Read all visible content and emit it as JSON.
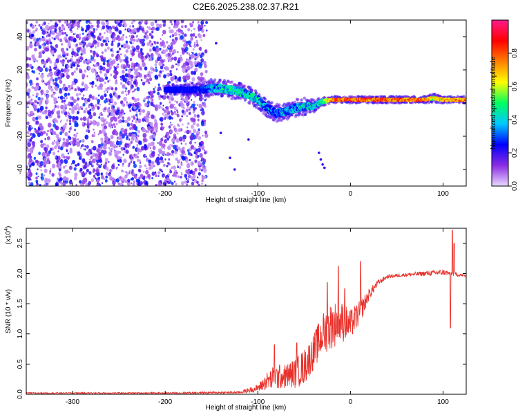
{
  "title": "C2E6.2025.238.02.37.R21",
  "colorbar": {
    "label": "Normalized spectral amplitude",
    "ticks": [
      "0.0",
      "0.2",
      "0.4",
      "0.6",
      "0.8"
    ],
    "tick_values": [
      0.0,
      0.2,
      0.4,
      0.6,
      0.8
    ],
    "range": [
      0,
      1
    ],
    "colors": [
      "#e9d9ff",
      "#8a2be2",
      "#0000ff",
      "#00c8ff",
      "#00ff60",
      "#ffff00",
      "#ff8000",
      "#ff0000",
      "#ff1a8c"
    ]
  },
  "chart_data": [
    {
      "type": "heatmap",
      "xlabel": "Height of straight line (km)",
      "ylabel": "Frequency (Hz)",
      "xlim": [
        -350,
        125
      ],
      "ylim": [
        -50,
        50
      ],
      "xticks": [
        -300,
        -200,
        -100,
        0,
        100
      ],
      "xtick_labels": [
        "-300",
        "-200",
        "-100",
        "0",
        "100"
      ],
      "yticks": [
        -40,
        -20,
        0,
        20,
        40
      ],
      "ytick_labels": [
        "-40",
        "-20",
        "0",
        "20",
        "40"
      ],
      "noise_region": {
        "x": [
          -350,
          -155
        ],
        "y": [
          -50,
          50
        ],
        "amplitude": [
          0.05,
          0.3
        ]
      },
      "frequency_trace": [
        {
          "x": -200,
          "f": 8,
          "amp": 0.25,
          "width": 2
        },
        {
          "x": -160,
          "f": 8,
          "amp": 0.3,
          "width": 3
        },
        {
          "x": -150,
          "f": 9,
          "amp": 0.45,
          "width": 4
        },
        {
          "x": -140,
          "f": 9,
          "amp": 0.5,
          "width": 4
        },
        {
          "x": -130,
          "f": 8,
          "amp": 0.55,
          "width": 4
        },
        {
          "x": -120,
          "f": 7,
          "amp": 0.55,
          "width": 4
        },
        {
          "x": -110,
          "f": 5,
          "amp": 0.5,
          "width": 4
        },
        {
          "x": -100,
          "f": 2,
          "amp": 0.5,
          "width": 4
        },
        {
          "x": -90,
          "f": -3,
          "amp": 0.45,
          "width": 4
        },
        {
          "x": -80,
          "f": -6,
          "amp": 0.4,
          "width": 4
        },
        {
          "x": -70,
          "f": -5,
          "amp": 0.45,
          "width": 4
        },
        {
          "x": -60,
          "f": -3,
          "amp": 0.45,
          "width": 4
        },
        {
          "x": -50,
          "f": -2,
          "amp": 0.5,
          "width": 4
        },
        {
          "x": -40,
          "f": -2,
          "amp": 0.5,
          "width": 3
        },
        {
          "x": -30,
          "f": 1,
          "amp": 0.55,
          "width": 2
        },
        {
          "x": -20,
          "f": 2,
          "amp": 0.85,
          "width": 1.5
        },
        {
          "x": 0,
          "f": 2,
          "amp": 0.9,
          "width": 1.5
        },
        {
          "x": 40,
          "f": 2,
          "amp": 0.9,
          "width": 1.5
        },
        {
          "x": 80,
          "f": 2,
          "amp": 0.88,
          "width": 1.5
        },
        {
          "x": 90,
          "f": 3,
          "amp": 0.7,
          "width": 2
        },
        {
          "x": 100,
          "f": 2,
          "amp": 0.85,
          "width": 1.5
        },
        {
          "x": 125,
          "f": 2,
          "amp": 0.85,
          "width": 1.5
        }
      ],
      "stray_points": [
        {
          "x": -28,
          "f": -39
        },
        {
          "x": -30,
          "f": -37
        },
        {
          "x": -32,
          "f": -34
        },
        {
          "x": -34,
          "f": -30
        },
        {
          "x": -130,
          "f": -33
        },
        {
          "x": -125,
          "f": -40
        },
        {
          "x": -110,
          "f": -22
        },
        {
          "x": -165,
          "f": 5
        },
        {
          "x": -140,
          "f": -18
        },
        {
          "x": -145,
          "f": 36
        },
        {
          "x": -120,
          "f": 12
        }
      ]
    },
    {
      "type": "line",
      "xlabel": "Height of straight line (km)",
      "ylabel": "SNR (10 * v/v)",
      "y_multiplier": "(x10",
      "y_multiplier_exp": "4",
      "y_multiplier_close": ")",
      "xlim": [
        -350,
        125
      ],
      "ylim": [
        0,
        2.75
      ],
      "xticks": [
        -300,
        -200,
        -100,
        0,
        100
      ],
      "xtick_labels": [
        "-300",
        "-200",
        "-100",
        "0",
        "100"
      ],
      "yticks": [
        0,
        0.5,
        1,
        1.5,
        2,
        2.5
      ],
      "ytick_labels": [
        "0.0",
        "0.5",
        "1.0",
        "1.5",
        "2.0",
        "2.5"
      ],
      "color": "#e8302a",
      "envelope": [
        {
          "x": -350,
          "y": 0.02,
          "noise": 0.01
        },
        {
          "x": -200,
          "y": 0.02,
          "noise": 0.01
        },
        {
          "x": -120,
          "y": 0.03,
          "noise": 0.02
        },
        {
          "x": -100,
          "y": 0.1,
          "noise": 0.06
        },
        {
          "x": -90,
          "y": 0.22,
          "noise": 0.15
        },
        {
          "x": -80,
          "y": 0.28,
          "noise": 0.22
        },
        {
          "x": -70,
          "y": 0.3,
          "noise": 0.2
        },
        {
          "x": -60,
          "y": 0.35,
          "noise": 0.25
        },
        {
          "x": -50,
          "y": 0.45,
          "noise": 0.3
        },
        {
          "x": -40,
          "y": 0.7,
          "noise": 0.3
        },
        {
          "x": -30,
          "y": 1.0,
          "noise": 0.35
        },
        {
          "x": -20,
          "y": 1.15,
          "noise": 0.4
        },
        {
          "x": -10,
          "y": 1.2,
          "noise": 0.35
        },
        {
          "x": 0,
          "y": 1.15,
          "noise": 0.25
        },
        {
          "x": 10,
          "y": 1.35,
          "noise": 0.2
        },
        {
          "x": 20,
          "y": 1.65,
          "noise": 0.1
        },
        {
          "x": 30,
          "y": 1.85,
          "noise": 0.05
        },
        {
          "x": 40,
          "y": 1.95,
          "noise": 0.03
        },
        {
          "x": 60,
          "y": 1.98,
          "noise": 0.03
        },
        {
          "x": 80,
          "y": 2.0,
          "noise": 0.04
        },
        {
          "x": 100,
          "y": 2.02,
          "noise": 0.05
        },
        {
          "x": 125,
          "y": 1.96,
          "noise": 0.02
        }
      ],
      "spikes": [
        {
          "x": -82,
          "y": 0.82
        },
        {
          "x": -58,
          "y": 0.85
        },
        {
          "x": -25,
          "y": 1.85
        },
        {
          "x": -13,
          "y": 2.12
        },
        {
          "x": -6,
          "y": 1.75
        },
        {
          "x": 11,
          "y": 2.2
        },
        {
          "x": 108,
          "y": 1.1
        },
        {
          "x": 110,
          "y": 2.72
        },
        {
          "x": 112,
          "y": 2.5
        }
      ]
    }
  ]
}
